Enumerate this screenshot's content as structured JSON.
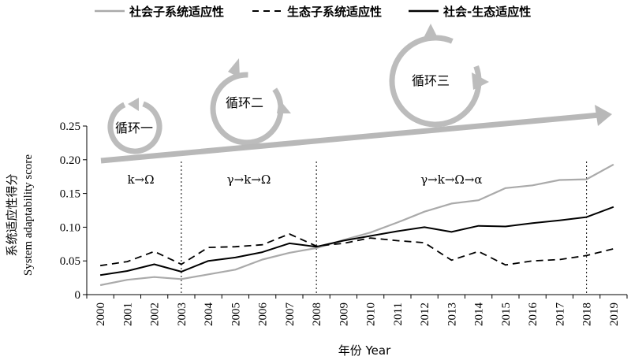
{
  "chart_data": {
    "type": "line",
    "x": [
      "2000",
      "2001",
      "2002",
      "2003",
      "2004",
      "2005",
      "2006",
      "2007",
      "2008",
      "2009",
      "2010",
      "2011",
      "2012",
      "2013",
      "2014",
      "2015",
      "2016",
      "2017",
      "2018",
      "2019"
    ],
    "series": [
      {
        "name": "社会子系统适应性",
        "style": "solid-gray",
        "color": "#aaaaaa",
        "values": [
          0.014,
          0.022,
          0.026,
          0.023,
          0.03,
          0.037,
          0.052,
          0.062,
          0.069,
          0.081,
          0.092,
          0.107,
          0.123,
          0.135,
          0.14,
          0.158,
          0.162,
          0.17,
          0.171,
          0.193
        ]
      },
      {
        "name": "生态子系统适应性",
        "style": "dashed-black",
        "color": "#000000",
        "values": [
          0.043,
          0.049,
          0.064,
          0.045,
          0.07,
          0.071,
          0.074,
          0.09,
          0.072,
          0.076,
          0.084,
          0.08,
          0.077,
          0.051,
          0.064,
          0.044,
          0.05,
          0.052,
          0.058,
          0.068
        ]
      },
      {
        "name": "社会-生态适应性",
        "style": "solid-black",
        "color": "#000000",
        "values": [
          0.029,
          0.035,
          0.045,
          0.034,
          0.05,
          0.055,
          0.063,
          0.076,
          0.071,
          0.08,
          0.087,
          0.094,
          0.1,
          0.093,
          0.102,
          0.101,
          0.106,
          0.11,
          0.115,
          0.13
        ]
      }
    ],
    "ylim": [
      0,
      0.25
    ],
    "yticks": [
      "0",
      "0.05",
      "0.10",
      "0.15",
      "0.20",
      "0.25"
    ],
    "xlabel": "年份 Year",
    "ylabel_cn": "系统适应性得分",
    "ylabel_en": "System adaptability score",
    "legend_position": "top",
    "phase_dividers": [
      "2003",
      "2008",
      "2018"
    ],
    "phases": [
      {
        "label": "k→Ω",
        "from": "2000",
        "to": "2003"
      },
      {
        "label": "γ→k→Ω",
        "from": "2003",
        "to": "2008"
      },
      {
        "label": "γ→k→Ω→α",
        "from": "2008",
        "to": "2018"
      }
    ],
    "cycles": [
      "循环一",
      "循环二",
      "循环三"
    ],
    "trend_arrow_color": "#b8b8b8"
  }
}
